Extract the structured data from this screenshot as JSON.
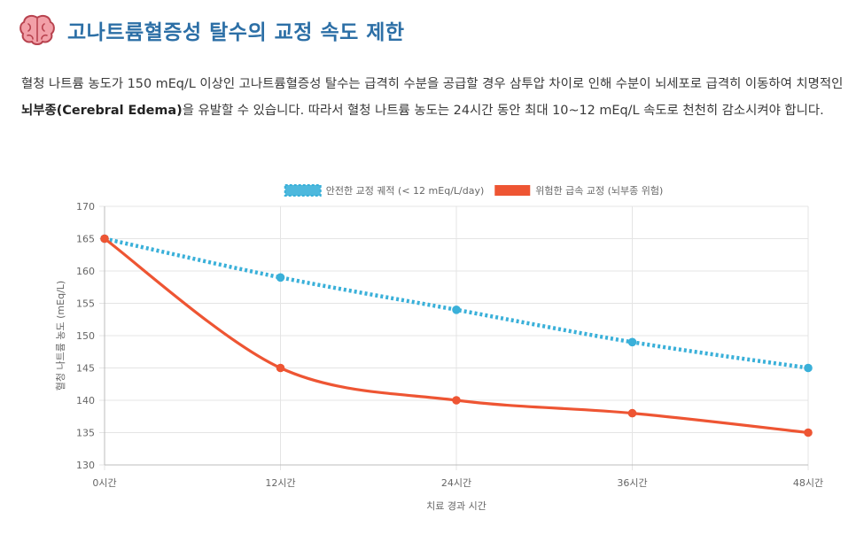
{
  "header": {
    "title": "고나트륨혈증성 탈수의 교정 속도 제한",
    "icon": "brain-icon"
  },
  "description": {
    "part1": "혈청 나트륨 농도가 150 mEq/L 이상인 고나트륨혈증성 탈수는 급격히 수분을 공급할 경우 삼투압 차이로 인해 수분이 뇌세포로 급격히 이동하여 치명적인 ",
    "bold": "뇌부종(Cerebral Edema)",
    "part2": "을 유발할 수 있습니다. 따라서 혈청 나트륨 농도는 24시간 동안 최대 10~12 mEq/L 속도로 천천히 감소시켜야 합니다."
  },
  "chart_data": {
    "type": "line",
    "categories": [
      "0시간",
      "12시간",
      "24시간",
      "36시간",
      "48시간"
    ],
    "series": [
      {
        "name": "안전한 교정 궤적 (< 12 mEq/L/day)",
        "values": [
          165,
          159,
          154,
          149,
          145
        ],
        "color": "#3ab0d9",
        "style": "dotted"
      },
      {
        "name": "위험한 급속 교정 (뇌부종 위험)",
        "values": [
          165,
          145,
          140,
          138,
          135
        ],
        "color": "#ee5533",
        "style": "solid"
      }
    ],
    "ylim": [
      130,
      170
    ],
    "yticks": [
      130,
      135,
      140,
      145,
      150,
      155,
      160,
      165,
      170
    ],
    "xlabel": "치료 경과 시간",
    "ylabel": "혈청 나트륨 농도 (mEq/L)",
    "legend_position": "top-center",
    "grid": true
  }
}
